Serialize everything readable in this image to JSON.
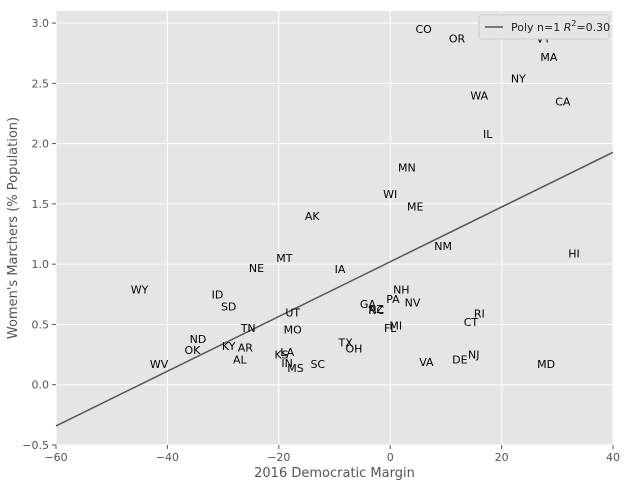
{
  "chart_data": {
    "type": "scatter",
    "xlabel": "2016 Democratic Margin",
    "ylabel": "Women's Marchers (% Population)",
    "xlim": [
      -60,
      40
    ],
    "ylim": [
      -0.5,
      3.1
    ],
    "xticks": [
      -60,
      -40,
      -20,
      0,
      20,
      40
    ],
    "yticks": [
      -0.5,
      0.0,
      0.5,
      1.0,
      1.5,
      2.0,
      2.5,
      3.0
    ],
    "xtick_labels": [
      "−60",
      "−40",
      "−20",
      "0",
      "20",
      "40"
    ],
    "ytick_labels": [
      "−0.5",
      "0.0",
      "0.5",
      "1.0",
      "1.5",
      "2.0",
      "2.5",
      "3.0"
    ],
    "grid": true,
    "legend_position": "top-right",
    "legend": {
      "label_main": "Poly n=1 ",
      "label_r": "R",
      "label_sup": "2",
      "label_tail": "=0.30"
    },
    "fit_line": {
      "intercept": 1.02,
      "slope": 0.0227,
      "color": "#555555"
    },
    "points": [
      {
        "label": "CO",
        "x": 6,
        "y": 2.95
      },
      {
        "label": "OR",
        "x": 12,
        "y": 2.87
      },
      {
        "label": "VT",
        "x": 27.5,
        "y": 2.87
      },
      {
        "label": "MA",
        "x": 28.5,
        "y": 2.72
      },
      {
        "label": "NY",
        "x": 23,
        "y": 2.54
      },
      {
        "label": "WA",
        "x": 16,
        "y": 2.4
      },
      {
        "label": "CA",
        "x": 31,
        "y": 2.35
      },
      {
        "label": "IL",
        "x": 17.5,
        "y": 2.08
      },
      {
        "label": "MN",
        "x": 3,
        "y": 1.8
      },
      {
        "label": "WI",
        "x": 0,
        "y": 1.58
      },
      {
        "label": "ME",
        "x": 4.5,
        "y": 1.48
      },
      {
        "label": "AK",
        "x": -14,
        "y": 1.4
      },
      {
        "label": "NM",
        "x": 9.5,
        "y": 1.15
      },
      {
        "label": "HI",
        "x": 33,
        "y": 1.09
      },
      {
        "label": "MT",
        "x": -19,
        "y": 1.05
      },
      {
        "label": "NE",
        "x": -24,
        "y": 0.97
      },
      {
        "label": "IA",
        "x": -9,
        "y": 0.96
      },
      {
        "label": "WY",
        "x": -45,
        "y": 0.79
      },
      {
        "label": "ID",
        "x": -31,
        "y": 0.75
      },
      {
        "label": "NH",
        "x": 2,
        "y": 0.79
      },
      {
        "label": "PA",
        "x": 0.5,
        "y": 0.71
      },
      {
        "label": "NV",
        "x": 4,
        "y": 0.68
      },
      {
        "label": "GA",
        "x": -4,
        "y": 0.67
      },
      {
        "label": "AZ",
        "x": -2.5,
        "y": 0.63
      },
      {
        "label": "NC",
        "x": -2.5,
        "y": 0.62
      },
      {
        "label": "SD",
        "x": -29,
        "y": 0.65
      },
      {
        "label": "UT",
        "x": -17.5,
        "y": 0.6
      },
      {
        "label": "RI",
        "x": 16,
        "y": 0.59
      },
      {
        "label": "CT",
        "x": 14.5,
        "y": 0.52
      },
      {
        "label": "MI",
        "x": 1,
        "y": 0.49
      },
      {
        "label": "FL",
        "x": 0,
        "y": 0.47
      },
      {
        "label": "TN",
        "x": -25.5,
        "y": 0.47
      },
      {
        "label": "MO",
        "x": -17.5,
        "y": 0.46
      },
      {
        "label": "ND",
        "x": -34.5,
        "y": 0.38
      },
      {
        "label": "TX",
        "x": -8,
        "y": 0.35
      },
      {
        "label": "KY",
        "x": -29,
        "y": 0.32
      },
      {
        "label": "AR",
        "x": -26,
        "y": 0.31
      },
      {
        "label": "OH",
        "x": -6.5,
        "y": 0.3
      },
      {
        "label": "OK",
        "x": -35.5,
        "y": 0.29
      },
      {
        "label": "LA",
        "x": -18.5,
        "y": 0.27
      },
      {
        "label": "KS",
        "x": -19.5,
        "y": 0.25
      },
      {
        "label": "NJ",
        "x": 15,
        "y": 0.25
      },
      {
        "label": "AL",
        "x": -27,
        "y": 0.21
      },
      {
        "label": "DE",
        "x": 12.5,
        "y": 0.21
      },
      {
        "label": "IN",
        "x": -18.5,
        "y": 0.18
      },
      {
        "label": "VA",
        "x": 6.5,
        "y": 0.19
      },
      {
        "label": "SC",
        "x": -13,
        "y": 0.17
      },
      {
        "label": "MS",
        "x": -17,
        "y": 0.14
      },
      {
        "label": "WV",
        "x": -41.5,
        "y": 0.17
      },
      {
        "label": "MD",
        "x": 28,
        "y": 0.17
      }
    ]
  }
}
